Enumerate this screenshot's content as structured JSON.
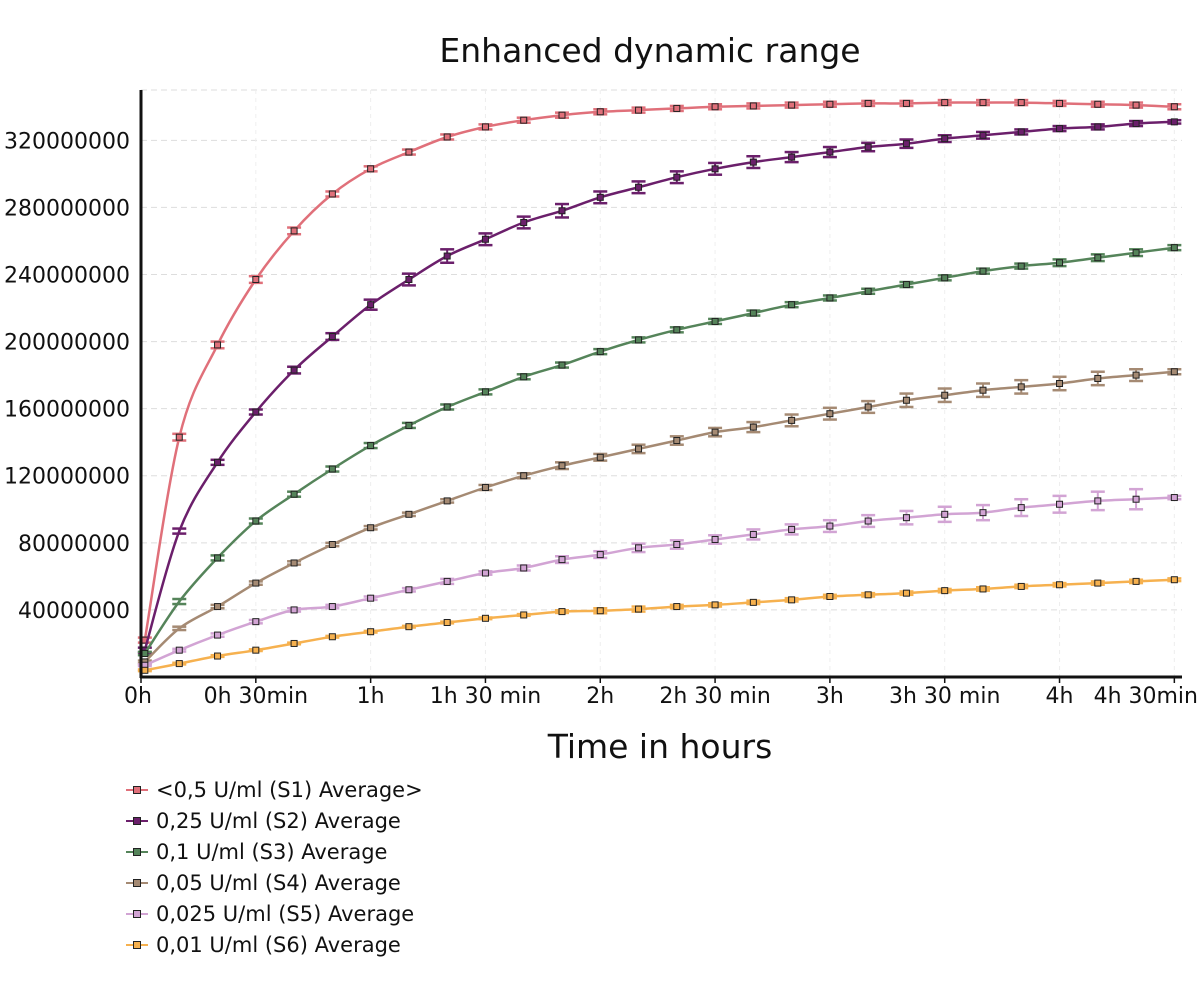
{
  "chart_data": {
    "type": "line",
    "title": "Enhanced dynamic range",
    "xlabel": "Time in hours",
    "ylabel": "",
    "x_unit": "minutes",
    "xlim": [
      0,
      272
    ],
    "ylim": [
      0,
      350000000
    ],
    "x_ticks": [
      {
        "label": "0h",
        "value": 0
      },
      {
        "label": "0h 30min",
        "value": 30
      },
      {
        "label": "1h",
        "value": 60
      },
      {
        "label": "1h 30 min",
        "value": 90
      },
      {
        "label": "2h",
        "value": 120
      },
      {
        "label": "2h 30 min",
        "value": 150
      },
      {
        "label": "3h",
        "value": 180
      },
      {
        "label": "3h 30 min",
        "value": 210
      },
      {
        "label": "4h",
        "value": 240
      },
      {
        "label": "4h 30min",
        "value": 270
      }
    ],
    "y_ticks": [
      40000000,
      80000000,
      120000000,
      160000000,
      200000000,
      240000000,
      280000000,
      320000000
    ],
    "y_tick_labels": [
      "40000000",
      "80000000",
      "120000000",
      "160000000",
      "200000000",
      "240000000",
      "280000000",
      "320000000"
    ],
    "grid": "horizontal dashed",
    "legend_position": "bottom-left",
    "x": [
      1,
      10,
      20,
      30,
      40,
      50,
      60,
      70,
      80,
      90,
      100,
      110,
      120,
      130,
      140,
      150,
      160,
      170,
      180,
      190,
      200,
      210,
      220,
      230,
      240,
      250,
      260,
      270
    ],
    "series": [
      {
        "name": "<0,5 U/ml (S1) Average>",
        "color": "#e0707a",
        "values": [
          22000000,
          143000000,
          198000000,
          237000000,
          266000000,
          288000000,
          303000000,
          313000000,
          322000000,
          328000000,
          332000000,
          335000000,
          337000000,
          338000000,
          339000000,
          340000000,
          340500000,
          341000000,
          341500000,
          342000000,
          342000000,
          342500000,
          342500000,
          342500000,
          342000000,
          341500000,
          341000000,
          340000000
        ],
        "err": [
          1500000,
          2000000,
          2000000,
          2000000,
          2000000,
          1500000,
          1500000,
          1500000,
          1500000,
          1500000,
          1500000,
          1500000,
          1500000,
          1500000,
          1500000,
          1500000,
          1500000,
          1500000,
          1500000,
          1500000,
          1500000,
          1500000,
          1500000,
          1500000,
          1500000,
          1500000,
          1500000,
          1500000
        ]
      },
      {
        "name": "0,25 U/ml (S2) Average",
        "color": "#6b1f6b",
        "values": [
          16000000,
          87000000,
          128000000,
          158000000,
          183000000,
          203000000,
          222000000,
          237000000,
          251000000,
          261000000,
          271000000,
          278000000,
          286000000,
          292000000,
          298000000,
          303000000,
          307000000,
          310000000,
          313000000,
          316000000,
          318000000,
          321000000,
          323000000,
          325000000,
          327000000,
          328000000,
          330000000,
          331000000
        ],
        "err": [
          1500000,
          1500000,
          1500000,
          1500000,
          2000000,
          2000000,
          3000000,
          3500000,
          4000000,
          3500000,
          3500000,
          4000000,
          3500000,
          3500000,
          3500000,
          3500000,
          3500000,
          3000000,
          3000000,
          2500000,
          2500000,
          2000000,
          2000000,
          1500000,
          1500000,
          1500000,
          1500000,
          1000000
        ],
        "no_marker_at": [
          1
        ]
      },
      {
        "name": "0,1 U/ml (S3) Average",
        "color": "#55845a",
        "values": [
          14000000,
          45000000,
          71000000,
          93000000,
          109000000,
          124000000,
          138000000,
          150000000,
          161000000,
          170000000,
          179000000,
          186000000,
          194000000,
          201000000,
          207000000,
          212000000,
          217000000,
          222000000,
          226000000,
          230000000,
          234000000,
          238000000,
          242000000,
          245000000,
          247000000,
          250000000,
          253000000,
          256000000
        ],
        "err": [
          1000000,
          1500000,
          1500000,
          1500000,
          1500000,
          1500000,
          1500000,
          1500000,
          1500000,
          1500000,
          1500000,
          1500000,
          1500000,
          1500000,
          1500000,
          1500000,
          1500000,
          1500000,
          1500000,
          1500000,
          1500000,
          1500000,
          1500000,
          1500000,
          2000000,
          2000000,
          2000000,
          1500000
        ],
        "no_marker_at": [
          1
        ]
      },
      {
        "name": "0,05 U/ml (S4) Average",
        "color": "#a58a73",
        "values": [
          9000000,
          29000000,
          42000000,
          56000000,
          68000000,
          79000000,
          89000000,
          97000000,
          105000000,
          113000000,
          120000000,
          126000000,
          131000000,
          136000000,
          141000000,
          146000000,
          149000000,
          153000000,
          157000000,
          161000000,
          165000000,
          168000000,
          171000000,
          173000000,
          175000000,
          178000000,
          180000000,
          182000000
        ],
        "err": [
          800000,
          1000000,
          1000000,
          1000000,
          1000000,
          1000000,
          1000000,
          1000000,
          1000000,
          1500000,
          1500000,
          2000000,
          2000000,
          2500000,
          2500000,
          2500000,
          3000000,
          3500000,
          3500000,
          3500000,
          4000000,
          4000000,
          4000000,
          4000000,
          4000000,
          4000000,
          3500000,
          1500000
        ],
        "no_marker_at": [
          1
        ]
      },
      {
        "name": "0,025 U/ml (S5) Average",
        "color": "#d2a4d4",
        "values": [
          7000000,
          16000000,
          25000000,
          33000000,
          40000000,
          42000000,
          47000000,
          52000000,
          57000000,
          62000000,
          65000000,
          70000000,
          73000000,
          77000000,
          79000000,
          82000000,
          85000000,
          88000000,
          90000000,
          93000000,
          95000000,
          97000000,
          98000000,
          101000000,
          103000000,
          105000000,
          106000000,
          107000000
        ],
        "err": [
          500000,
          800000,
          1000000,
          1000000,
          1000000,
          1000000,
          1000000,
          1000000,
          1500000,
          1000000,
          1500000,
          2000000,
          2000000,
          2500000,
          2500000,
          2500000,
          3000000,
          3000000,
          3500000,
          3500000,
          4000000,
          4500000,
          4500000,
          5000000,
          5000000,
          5500000,
          6000000,
          1000000
        ]
      },
      {
        "name": "0,01 U/ml (S6) Average",
        "color": "#f6b14f",
        "values": [
          4000000,
          8000000,
          12500000,
          16000000,
          20000000,
          24000000,
          27000000,
          30000000,
          32500000,
          35000000,
          37000000,
          39000000,
          39500000,
          40500000,
          42000000,
          43000000,
          44500000,
          46000000,
          48000000,
          49000000,
          50000000,
          51500000,
          52500000,
          54000000,
          55000000,
          56000000,
          57000000,
          58000000
        ],
        "err": [
          500000,
          500000,
          500000,
          500000,
          500000,
          500000,
          500000,
          500000,
          500000,
          500000,
          500000,
          800000,
          1500000,
          1500000,
          1000000,
          1000000,
          1000000,
          1000000,
          1000000,
          1000000,
          1000000,
          1000000,
          1000000,
          1000000,
          1000000,
          1000000,
          1000000,
          800000
        ]
      }
    ]
  }
}
